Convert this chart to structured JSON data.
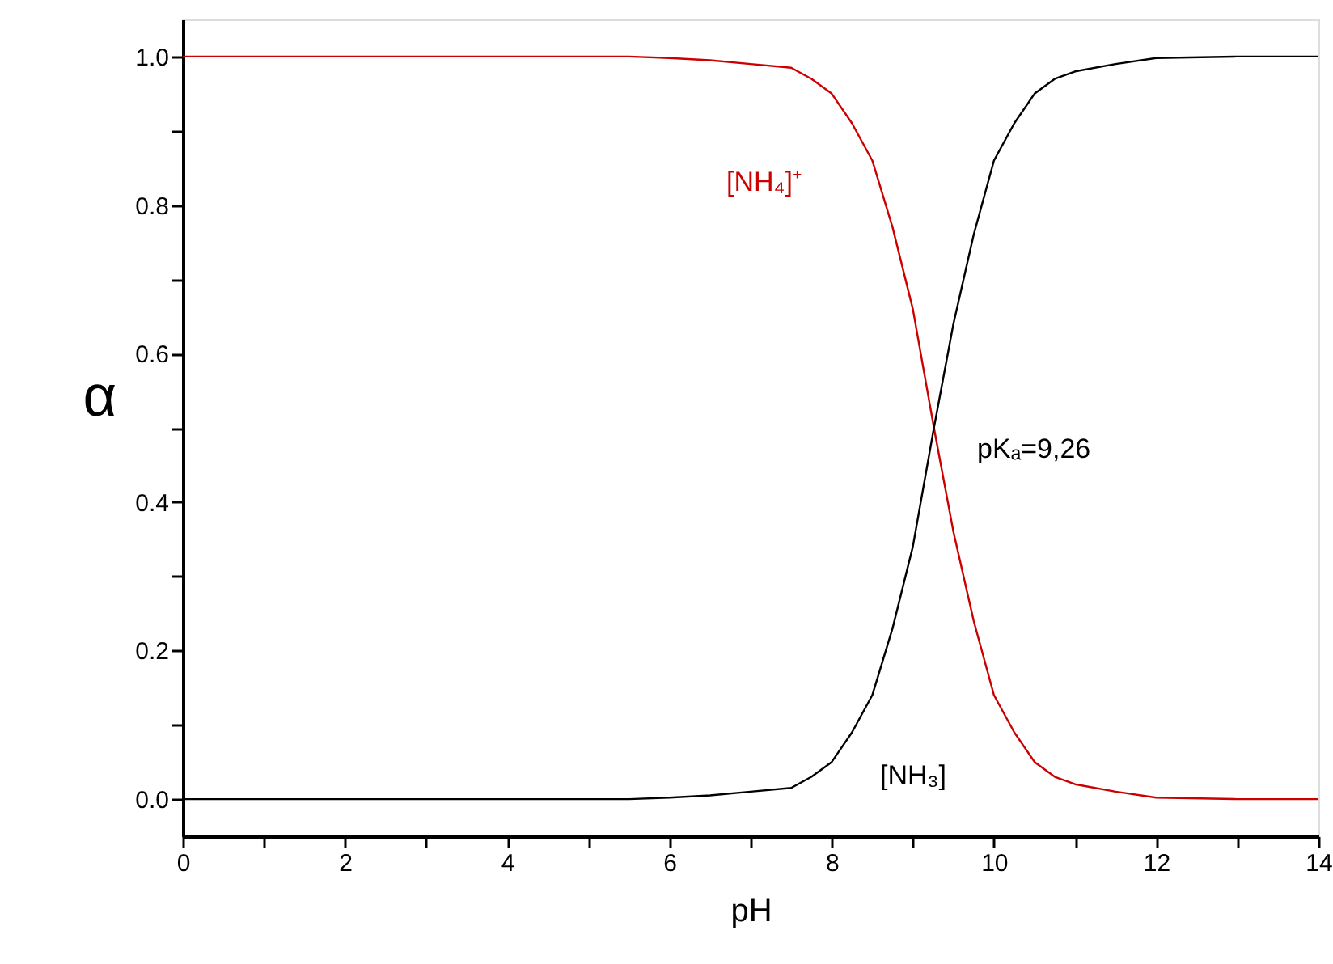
{
  "chart_data": {
    "type": "line",
    "xlabel": "pH",
    "ylabel": "α",
    "x": [
      0,
      1,
      2,
      3,
      4,
      5,
      5.5,
      6,
      6.5,
      7,
      7.5,
      7.75,
      8,
      8.25,
      8.5,
      8.75,
      9,
      9.26,
      9.5,
      9.75,
      10,
      10.25,
      10.5,
      10.75,
      11,
      11.5,
      12,
      13,
      14
    ],
    "series": [
      {
        "name": "[NH₄]⁺",
        "color": "#cc0000",
        "values": [
          1,
          1,
          1,
          1,
          1,
          1,
          1,
          0.998,
          0.995,
          0.99,
          0.985,
          0.97,
          0.95,
          0.91,
          0.86,
          0.77,
          0.66,
          0.5,
          0.36,
          0.24,
          0.14,
          0.09,
          0.05,
          0.03,
          0.02,
          0.01,
          0.002,
          0,
          0
        ]
      },
      {
        "name": "[NH₃]",
        "color": "#000000",
        "values": [
          0,
          0,
          0,
          0,
          0,
          0,
          0,
          0.002,
          0.005,
          0.01,
          0.015,
          0.03,
          0.05,
          0.09,
          0.14,
          0.23,
          0.34,
          0.5,
          0.64,
          0.76,
          0.86,
          0.91,
          0.95,
          0.97,
          0.98,
          0.99,
          0.998,
          1,
          1
        ]
      }
    ],
    "annotations": [
      "pKₐ=9,26"
    ],
    "xlim": [
      0,
      14
    ],
    "xticks": [
      0,
      {
        "value": 1,
        "label": null
      },
      2,
      {
        "value": 3,
        "label": null
      },
      4,
      {
        "value": 5,
        "label": null
      },
      6,
      {
        "value": 7,
        "label": null
      },
      8,
      {
        "value": 9,
        "label": null
      },
      10,
      {
        "value": 11,
        "label": null
      },
      12,
      {
        "value": 13,
        "label": null
      },
      14
    ],
    "ylim": [
      -0.05,
      1.05
    ],
    "yticks": [
      {
        "value": 0,
        "label": "0.0"
      },
      {
        "value": 0.1,
        "label": null
      },
      {
        "value": 0.2,
        "label": "0.2"
      },
      {
        "value": 0.3,
        "label": null
      },
      {
        "value": 0.4,
        "label": "0.4"
      },
      {
        "value": 0.5,
        "label": null
      },
      {
        "value": 0.6,
        "label": "0.6"
      },
      {
        "value": 0.7,
        "label": null
      },
      {
        "value": 0.8,
        "label": "0.8"
      },
      {
        "value": 0.9,
        "label": null
      },
      {
        "value": 1,
        "label": "1.0"
      }
    ],
    "grid": false,
    "marker": "none",
    "line_style": "solid"
  }
}
